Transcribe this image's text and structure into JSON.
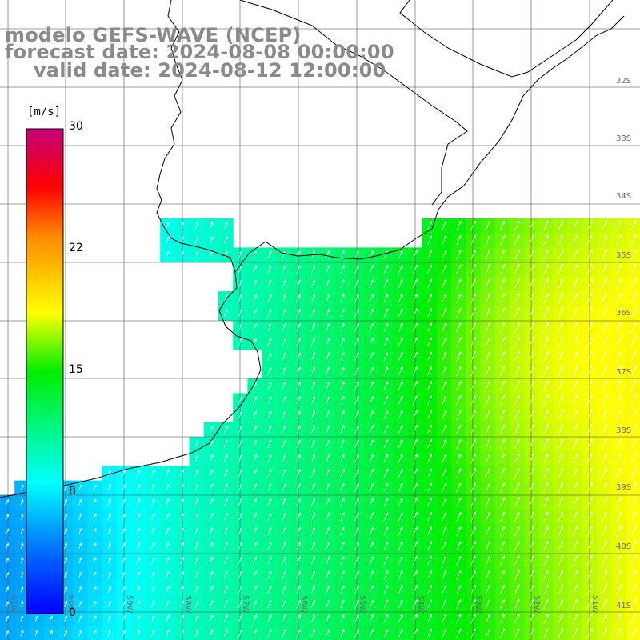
{
  "title": {
    "model": "modelo GEFS-WAVE (NCEP)",
    "forecast": "forecast date: 2024-08-08 00:00:00",
    "valid": "valid date: 2024-08-12 12:00:00"
  },
  "colorbar": {
    "unit": "[m/s]",
    "ticks": [
      "30",
      "22",
      "15",
      "8",
      "0"
    ]
  },
  "lat_labels": [
    "32S",
    "33S",
    "34S",
    "35S",
    "36S",
    "37S",
    "38S",
    "39S",
    "40S",
    "41S"
  ],
  "lon_labels": [
    "61W",
    "60W",
    "59W",
    "58W",
    "57W",
    "56W",
    "55W",
    "54W",
    "53W",
    "52W",
    "51W"
  ],
  "field": {
    "name": "wind speed",
    "direction": "wind toward NE",
    "range_min_mps": 5,
    "range_max_mps": 20
  }
}
